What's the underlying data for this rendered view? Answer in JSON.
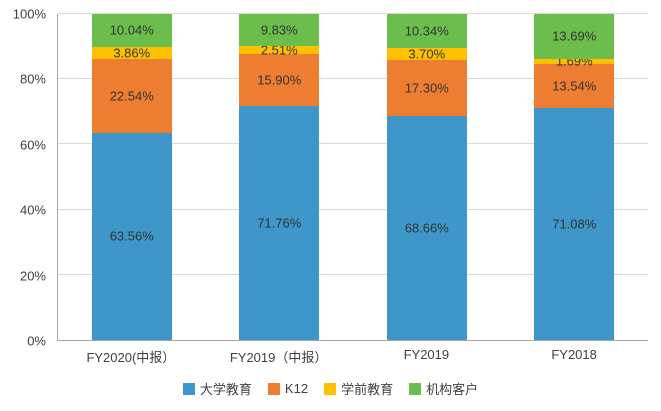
{
  "chart_data": {
    "type": "bar",
    "stacked": true,
    "percent_stacked": true,
    "title": "",
    "xlabel": "",
    "ylabel": "",
    "categories": [
      "FY2020(中报）",
      "FY2019（中报）",
      "FY2019",
      "FY2018"
    ],
    "series": [
      {
        "name": "大学教育",
        "color": "#3f96c9",
        "values": [
          63.56,
          71.76,
          68.66,
          71.08
        ]
      },
      {
        "name": "K12",
        "color": "#ed7d31",
        "values": [
          22.54,
          15.9,
          17.3,
          13.54
        ]
      },
      {
        "name": "学前教育",
        "color": "#ffc000",
        "values": [
          3.86,
          2.51,
          3.7,
          1.69
        ]
      },
      {
        "name": "机构客户",
        "color": "#6bbe4c",
        "values": [
          10.04,
          9.83,
          10.34,
          13.69
        ]
      }
    ],
    "ylim": [
      0,
      100
    ],
    "ytick_labels": [
      "0%",
      "20%",
      "40%",
      "60%",
      "80%",
      "100%"
    ],
    "ytick_values": [
      0,
      20,
      40,
      60,
      80,
      100
    ],
    "grid": true,
    "legend_position": "bottom",
    "value_label_format": "0.00%"
  }
}
